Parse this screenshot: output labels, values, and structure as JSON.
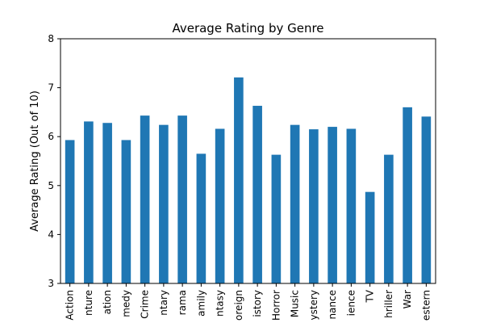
{
  "chart_data": {
    "type": "bar",
    "title": "Average Rating by Genre",
    "xlabel": "",
    "ylabel": "Average Rating (Out of 10)",
    "ylim": [
      3,
      8
    ],
    "yticks": [
      3,
      4,
      5,
      6,
      7,
      8
    ],
    "grid": false,
    "legend": "none",
    "bar_color": "#1f77b4",
    "categories": [
      "Action",
      "Adventure",
      "Animation",
      "Comedy",
      "Crime",
      "Documentary",
      "Drama",
      "Family",
      "Fantasy",
      "Foreign",
      "History",
      "Horror",
      "Music",
      "Mystery",
      "Romance",
      "Science",
      "TV",
      "Thriller",
      "War",
      "Western"
    ],
    "tick_labels": [
      "Action",
      "nture",
      "ation",
      "medy",
      "Crime",
      "ntary",
      "rama",
      "amily",
      "ntasy",
      "oreign",
      "istory",
      "Horror",
      "Music",
      "ystery",
      "nance",
      "ience",
      "TV",
      "hriller",
      "War",
      "estern"
    ],
    "values": [
      5.93,
      6.31,
      6.28,
      5.93,
      6.43,
      6.24,
      6.43,
      5.65,
      6.16,
      7.21,
      6.63,
      5.63,
      6.24,
      6.15,
      6.2,
      6.16,
      4.87,
      5.63,
      6.6,
      6.41
    ]
  }
}
